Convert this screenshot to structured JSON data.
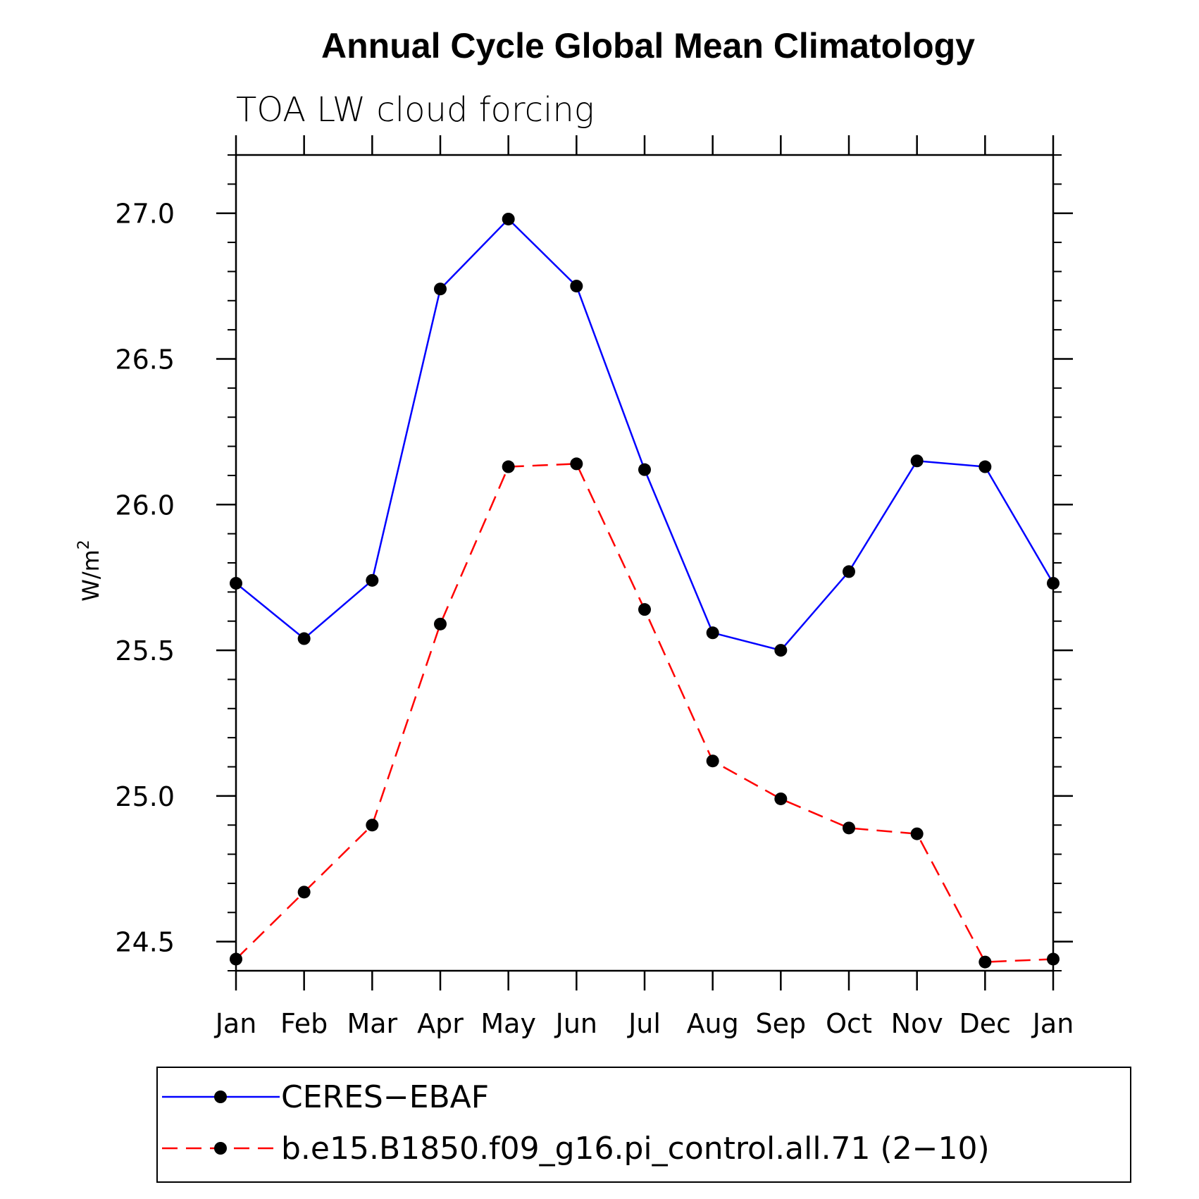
{
  "chart_data": {
    "type": "line",
    "title": "Annual Cycle Global Mean Climatology",
    "subtitle": "TOA LW cloud forcing",
    "xlabel": "",
    "ylabel": "W/m",
    "ylabel_superscript": "2",
    "categories": [
      "Jan",
      "Feb",
      "Mar",
      "Apr",
      "May",
      "Jun",
      "Jul",
      "Aug",
      "Sep",
      "Oct",
      "Nov",
      "Dec",
      "Jan"
    ],
    "ylim": [
      24.4,
      27.2
    ],
    "yticks": [
      24.5,
      25.0,
      25.5,
      26.0,
      26.5,
      27.0
    ],
    "ytick_labels": [
      "24.5",
      "25.0",
      "25.5",
      "26.0",
      "26.5",
      "27.0"
    ],
    "grid": false,
    "legend_position": "bottom",
    "series": [
      {
        "name": "CERES−EBAF",
        "color": "#0000ff",
        "dash": "solid",
        "marker": "circle",
        "values": [
          25.73,
          25.54,
          25.74,
          26.74,
          26.98,
          26.75,
          26.12,
          25.56,
          25.5,
          25.77,
          26.15,
          26.13,
          25.73
        ]
      },
      {
        "name": "b.e15.B1850.f09_g16.pi_control.all.71 (2−10)",
        "color": "#ff0000",
        "dash": "dashed",
        "marker": "circle",
        "values": [
          24.44,
          24.67,
          24.9,
          25.59,
          26.13,
          26.14,
          25.64,
          25.12,
          24.99,
          24.89,
          24.87,
          24.43,
          24.44
        ]
      }
    ]
  }
}
